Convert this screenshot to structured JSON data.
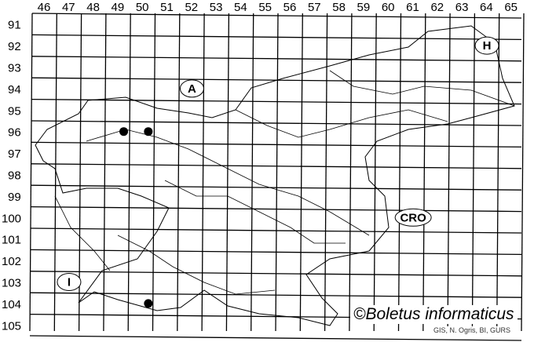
{
  "map": {
    "columns": [
      "46",
      "47",
      "48",
      "49",
      "50",
      "51",
      "52",
      "53",
      "54",
      "55",
      "56",
      "57",
      "58",
      "59",
      "60",
      "61",
      "62",
      "63",
      "64",
      "65"
    ],
    "rows": [
      "91",
      "92",
      "93",
      "94",
      "95",
      "96",
      "97",
      "98",
      "99",
      "100",
      "101",
      "102",
      "103",
      "104",
      "105"
    ],
    "country_labels": [
      {
        "text": "A",
        "col": "52",
        "row": "94"
      },
      {
        "text": "H",
        "col": "64",
        "row": "92"
      },
      {
        "text": "CRO",
        "col": "61",
        "row": "100"
      },
      {
        "text": "I",
        "col": "47",
        "row": "103"
      }
    ],
    "records": [
      {
        "col": "49",
        "row": "96"
      },
      {
        "col": "50",
        "row": "96"
      },
      {
        "col": "50",
        "row": "104"
      }
    ],
    "copyright": "©Boletus informaticus",
    "credit": "GIS, N. Ogris, BI, GURS",
    "line_color": "#000000",
    "dot_color": "#000000"
  }
}
